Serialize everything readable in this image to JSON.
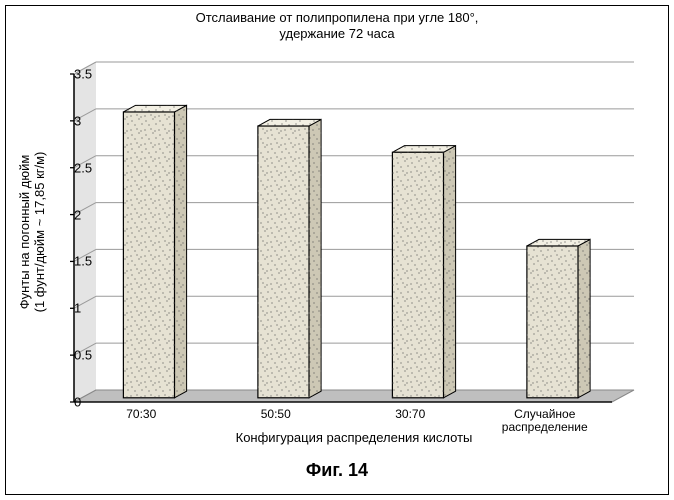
{
  "chart": {
    "type": "bar-3d",
    "title_line1": "Отслаивание от полипропилена при угле 180°,",
    "title_line2": "удержание 72 часа",
    "xlabel": "Конфигурация распределения кислоты",
    "ylabel": "Фунты на погонный дюйм\n(1 фунт/дюйм ~ 17,85 кг/м)",
    "categories": [
      "70:30",
      "50:50",
      "30:70",
      "Случайное\nраспределение"
    ],
    "values": [
      3.05,
      2.9,
      2.62,
      1.62
    ],
    "ylim": [
      0,
      3.5
    ],
    "ytick_step": 0.5,
    "yticks": [
      0,
      0.5,
      1,
      1.5,
      2,
      2.5,
      3,
      3.5
    ],
    "bar_fill": "#e6e2d3",
    "bar_stroke": "#000000",
    "bar_top_fill": "#f2efe3",
    "bar_side_fill": "#cdc8b5",
    "speckle_color": "#555555",
    "floor_fill": "#bfbfbf",
    "side_plane_fill": "#e4e4e4",
    "grid_color": "#9a9a9a",
    "background_color": "#ffffff",
    "bar_rel_width": 0.38,
    "depth_dx": 22,
    "depth_dy": 12,
    "label_fontsize": 13,
    "tick_fontsize": 13,
    "title_fontsize": 13,
    "caption": "Фиг. 14"
  }
}
